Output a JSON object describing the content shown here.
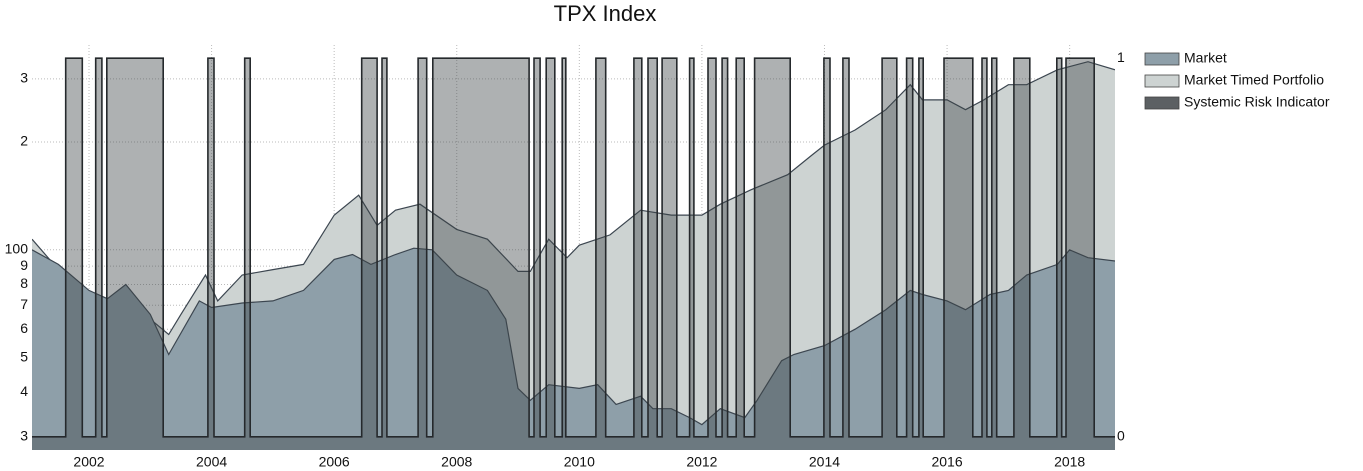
{
  "chart_data": {
    "type": "area",
    "title": "TPX Index",
    "ylog": true,
    "ylim": [
      27.6,
      373
    ],
    "yticks": [
      {
        "value": 30,
        "label": "3"
      },
      {
        "value": 40,
        "label": "4"
      },
      {
        "value": 50,
        "label": "5"
      },
      {
        "value": 60,
        "label": "6"
      },
      {
        "value": 70,
        "label": "7"
      },
      {
        "value": 80,
        "label": "8"
      },
      {
        "value": 90,
        "label": "9"
      },
      100,
      {
        "value": 200,
        "label": "2"
      },
      {
        "value": 300,
        "label": "3"
      }
    ],
    "y2lim": [
      -0.035,
      1.035
    ],
    "y2ticks": [
      0,
      1
    ],
    "xlim": [
      2001.07,
      2018.74
    ],
    "xticks": [
      2002,
      2004,
      2006,
      2008,
      2010,
      2012,
      2014,
      2016,
      2018
    ],
    "grid": true,
    "legend": "right",
    "series": [
      {
        "name": "Market",
        "color": "#8e9fa9",
        "x": [
          2001.07,
          2001.5,
          2002.0,
          2002.3,
          2002.6,
          2003.0,
          2003.3,
          2003.8,
          2004.0,
          2004.5,
          2005.0,
          2005.5,
          2006.0,
          2006.3,
          2006.6,
          2007.0,
          2007.3,
          2007.6,
          2008.0,
          2008.5,
          2008.8,
          2009.0,
          2009.2,
          2009.5,
          2010.0,
          2010.3,
          2010.6,
          2011.0,
          2011.2,
          2011.5,
          2011.8,
          2012.0,
          2012.3,
          2012.7,
          2012.9,
          2013.3,
          2013.5,
          2014.0,
          2014.5,
          2015.0,
          2015.4,
          2015.6,
          2016.0,
          2016.3,
          2016.7,
          2017.0,
          2017.3,
          2017.8,
          2018.0,
          2018.3,
          2018.74
        ],
        "values": [
          100,
          91,
          77,
          73,
          80,
          66,
          51,
          72,
          69,
          71,
          72,
          77,
          94,
          97,
          91,
          97,
          101,
          100,
          85,
          77,
          64,
          41,
          38,
          42,
          41,
          42,
          37,
          39,
          36,
          36,
          34,
          32.5,
          36,
          34,
          38,
          49,
          51,
          54,
          60,
          68,
          77,
          75,
          72,
          68,
          75,
          77,
          85,
          91,
          100,
          95,
          93
        ]
      },
      {
        "name": "Market Timed Portfolio",
        "color": "#cdd3d2",
        "x": [
          2001.07,
          2001.5,
          2002.0,
          2002.3,
          2002.6,
          2003.0,
          2003.3,
          2003.5,
          2003.9,
          2004.1,
          2004.5,
          2005.0,
          2005.5,
          2006.0,
          2006.4,
          2006.7,
          2007.0,
          2007.4,
          2008.0,
          2008.5,
          2009.0,
          2009.2,
          2009.5,
          2009.8,
          2010.0,
          2010.5,
          2011.0,
          2011.5,
          2012.0,
          2012.3,
          2012.8,
          2013.4,
          2013.8,
          2014.0,
          2014.5,
          2015.0,
          2015.4,
          2015.6,
          2016.0,
          2016.3,
          2016.6,
          2017.0,
          2017.3,
          2017.8,
          2018.3,
          2018.74
        ],
        "values": [
          107,
          88,
          75,
          70,
          68,
          64,
          58,
          66,
          85,
          72,
          85,
          88,
          91,
          125,
          142,
          117,
          129,
          134,
          114,
          107,
          87,
          87,
          107,
          95,
          103,
          110,
          129,
          125,
          125,
          134,
          147,
          162,
          184,
          196,
          216,
          246,
          289,
          262,
          262,
          246,
          262,
          289,
          289,
          318,
          335,
          318
        ]
      },
      {
        "name": "Systemic Risk Indicator",
        "color": "#3f4448",
        "axis": "y2",
        "x": [
          2001.07,
          2001.62,
          2001.89,
          2002.11,
          2002.21,
          2002.29,
          2003.21,
          2003.94,
          2004.04,
          2004.54,
          2004.63,
          2006.45,
          2006.7,
          2006.78,
          2006.86,
          2007.37,
          2007.51,
          2007.61,
          2009.18,
          2009.26,
          2009.36,
          2009.46,
          2009.6,
          2009.72,
          2009.78,
          2010.27,
          2010.43,
          2010.89,
          2011.02,
          2011.12,
          2011.27,
          2011.35,
          2011.59,
          2011.8,
          2011.87,
          2012.1,
          2012.23,
          2012.33,
          2012.42,
          2012.56,
          2012.69,
          2012.86,
          2013.44,
          2013.99,
          2014.09,
          2014.3,
          2014.4,
          2014.94,
          2015.18,
          2015.34,
          2015.44,
          2015.54,
          2015.61,
          2015.95,
          2016.42,
          2016.57,
          2016.65,
          2016.73,
          2016.81,
          2017.09,
          2017.35,
          2017.79,
          2017.87,
          2017.94,
          2018.4
        ],
        "values": [
          0,
          1,
          0,
          1,
          0,
          1,
          0,
          1,
          0,
          1,
          0,
          1,
          0,
          1,
          0,
          1,
          0,
          1,
          0,
          1,
          0,
          1,
          0,
          1,
          0,
          1,
          0,
          1,
          0,
          1,
          0,
          1,
          0,
          1,
          0,
          1,
          0,
          1,
          0,
          1,
          0,
          1,
          0,
          1,
          0,
          1,
          0,
          1,
          0,
          1,
          0,
          1,
          0,
          1,
          0,
          1,
          0,
          1,
          0,
          1,
          0,
          1,
          0,
          1,
          0
        ]
      }
    ]
  }
}
